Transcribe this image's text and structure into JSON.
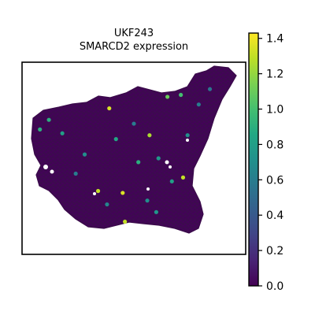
{
  "chart_data": {
    "type": "scatter",
    "title_line1": "UKF243",
    "title_line2": "SMARCD2 expression",
    "xlabel": "",
    "ylabel": "",
    "grid": false,
    "colormap": "viridis",
    "colorbar": {
      "min": 0.0,
      "max": 1.43,
      "ticks": [
        "0.0",
        "0.2",
        "0.4",
        "0.6",
        "0.8",
        "1.0",
        "1.2",
        "1.4"
      ],
      "tick_values": [
        0.0,
        0.2,
        0.4,
        0.6,
        0.8,
        1.0,
        1.2,
        1.4
      ]
    },
    "highlighted_spots": [
      {
        "x": 0.39,
        "y": 0.76,
        "value": 1.35
      },
      {
        "x": 0.57,
        "y": 0.62,
        "value": 1.25
      },
      {
        "x": 0.72,
        "y": 0.4,
        "value": 1.3
      },
      {
        "x": 0.34,
        "y": 0.33,
        "value": 1.3
      },
      {
        "x": 0.45,
        "y": 0.32,
        "value": 1.35
      },
      {
        "x": 0.46,
        "y": 0.17,
        "value": 1.3
      },
      {
        "x": 0.65,
        "y": 0.82,
        "value": 1.1
      },
      {
        "x": 0.71,
        "y": 0.83,
        "value": 1.0
      },
      {
        "x": 0.12,
        "y": 0.7,
        "value": 0.9
      },
      {
        "x": 0.18,
        "y": 0.63,
        "value": 0.8
      },
      {
        "x": 0.28,
        "y": 0.52,
        "value": 0.7
      },
      {
        "x": 0.42,
        "y": 0.6,
        "value": 0.85
      },
      {
        "x": 0.52,
        "y": 0.48,
        "value": 0.9
      },
      {
        "x": 0.61,
        "y": 0.5,
        "value": 0.75
      },
      {
        "x": 0.67,
        "y": 0.38,
        "value": 0.8
      },
      {
        "x": 0.56,
        "y": 0.28,
        "value": 0.7
      },
      {
        "x": 0.38,
        "y": 0.26,
        "value": 0.65
      },
      {
        "x": 0.6,
        "y": 0.22,
        "value": 0.75
      },
      {
        "x": 0.74,
        "y": 0.62,
        "value": 0.7
      },
      {
        "x": 0.24,
        "y": 0.42,
        "value": 0.6
      },
      {
        "x": 0.08,
        "y": 0.65,
        "value": 0.9
      },
      {
        "x": 0.5,
        "y": 0.68,
        "value": 0.6
      },
      {
        "x": 0.79,
        "y": 0.78,
        "value": 0.6
      },
      {
        "x": 0.84,
        "y": 0.86,
        "value": 0.55
      }
    ]
  }
}
